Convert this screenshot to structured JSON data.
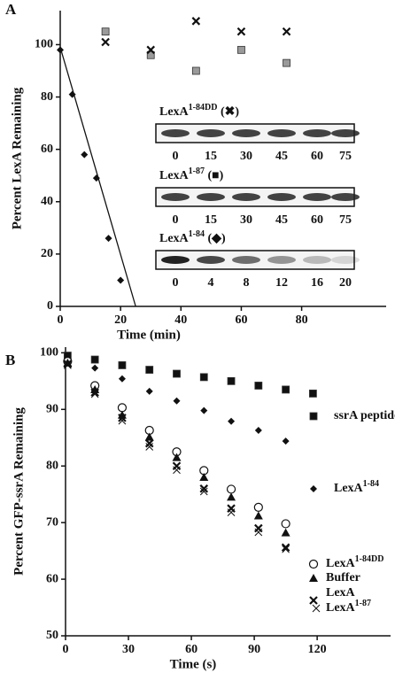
{
  "chart_data": [
    {
      "type": "scatter",
      "panel": "A",
      "xlabel": "Time (min)",
      "ylabel": "Percent LexA Remaining",
      "xlim": [
        0,
        108
      ],
      "ylim": [
        0,
        113
      ],
      "xticks": [
        0,
        20,
        40,
        60,
        80
      ],
      "yticks": [
        0,
        20,
        40,
        60,
        80,
        100
      ],
      "series": [
        {
          "name": "LexA1-84",
          "marker": "diamond",
          "color": "#111111",
          "x": [
            0,
            4,
            8,
            12,
            16,
            20
          ],
          "values": [
            98,
            81,
            58,
            49,
            26,
            10
          ]
        },
        {
          "marker": "line",
          "color": "#111111",
          "x": [
            0,
            25
          ],
          "values": [
            99,
            0
          ]
        },
        {
          "name": "LexA1-87",
          "marker": "square",
          "color": "#9a9a9a",
          "x": [
            15,
            30,
            45,
            60,
            75
          ],
          "values": [
            105,
            96,
            90,
            98,
            93
          ]
        },
        {
          "name": "LexA1-84DD",
          "marker": "x",
          "color": "#111111",
          "x": [
            15,
            30,
            45,
            60,
            75
          ],
          "values": [
            101,
            98,
            109,
            105,
            105
          ]
        }
      ],
      "insets": [
        {
          "title": "LexA1-84DD (✖)",
          "lanes": [
            0,
            15,
            30,
            45,
            60,
            75
          ]
        },
        {
          "title": "LexA1-87 (■)",
          "lanes": [
            0,
            15,
            30,
            45,
            60,
            75
          ]
        },
        {
          "title": "LexA1-84 (◆)",
          "lanes": [
            0,
            4,
            8,
            12,
            16,
            20
          ]
        }
      ]
    },
    {
      "type": "scatter",
      "panel": "B",
      "xlabel": "Time (s)",
      "ylabel": "Percent GFP-ssrA Remaining",
      "legend": "right",
      "xlim": [
        0,
        155
      ],
      "ylim": [
        50,
        101
      ],
      "xticks": [
        0,
        30,
        60,
        90,
        120
      ],
      "yticks": [
        50,
        60,
        70,
        80,
        90,
        100
      ],
      "series": [
        {
          "name": "ssrA peptide",
          "marker": "square",
          "color": "#111111",
          "x": [
            1,
            14,
            27,
            40,
            53,
            66,
            79,
            92,
            105,
            118
          ],
          "values": [
            99.5,
            98.8,
            97.8,
            97,
            96.3,
            95.7,
            95,
            94.2,
            93.5,
            92.8
          ]
        },
        {
          "name": "LexA1-84",
          "marker": "diamond",
          "color": "#111111",
          "x": [
            1,
            14,
            27,
            40,
            53,
            66,
            79,
            92,
            105
          ],
          "values": [
            98.5,
            97.3,
            95.4,
            93.2,
            91.5,
            89.8,
            87.9,
            86.3,
            84.4
          ]
        },
        {
          "name": "LexA1-84DD",
          "marker": "circle",
          "color": "#111111",
          "x": [
            1,
            14,
            27,
            40,
            53,
            66,
            79,
            92,
            105
          ],
          "values": [
            98.5,
            94.2,
            90.3,
            86.3,
            82.5,
            79.2,
            75.9,
            72.7,
            69.8
          ]
        },
        {
          "name": "Buffer",
          "marker": "triangle",
          "color": "#111111",
          "x": [
            1,
            14,
            27,
            40,
            53,
            66,
            79,
            92,
            105
          ],
          "values": [
            98.2,
            93.5,
            89,
            85.1,
            81.5,
            78,
            74.5,
            71.2,
            68.2
          ]
        },
        {
          "name": "LexA",
          "marker": "x",
          "color": "#111111",
          "x": [
            1,
            14,
            27,
            40,
            53,
            66,
            79,
            92,
            105
          ],
          "values": [
            98,
            93,
            88.5,
            84,
            80,
            76,
            72.5,
            69,
            65.6
          ]
        },
        {
          "name": "LexA1-87",
          "marker": "xthin",
          "color": "#111111",
          "x": [
            1,
            14,
            27,
            40,
            53,
            66,
            79,
            92,
            105
          ],
          "values": [
            97.8,
            92.7,
            88,
            83.4,
            79.3,
            75.5,
            71.8,
            68.3,
            65.3
          ]
        }
      ]
    }
  ]
}
